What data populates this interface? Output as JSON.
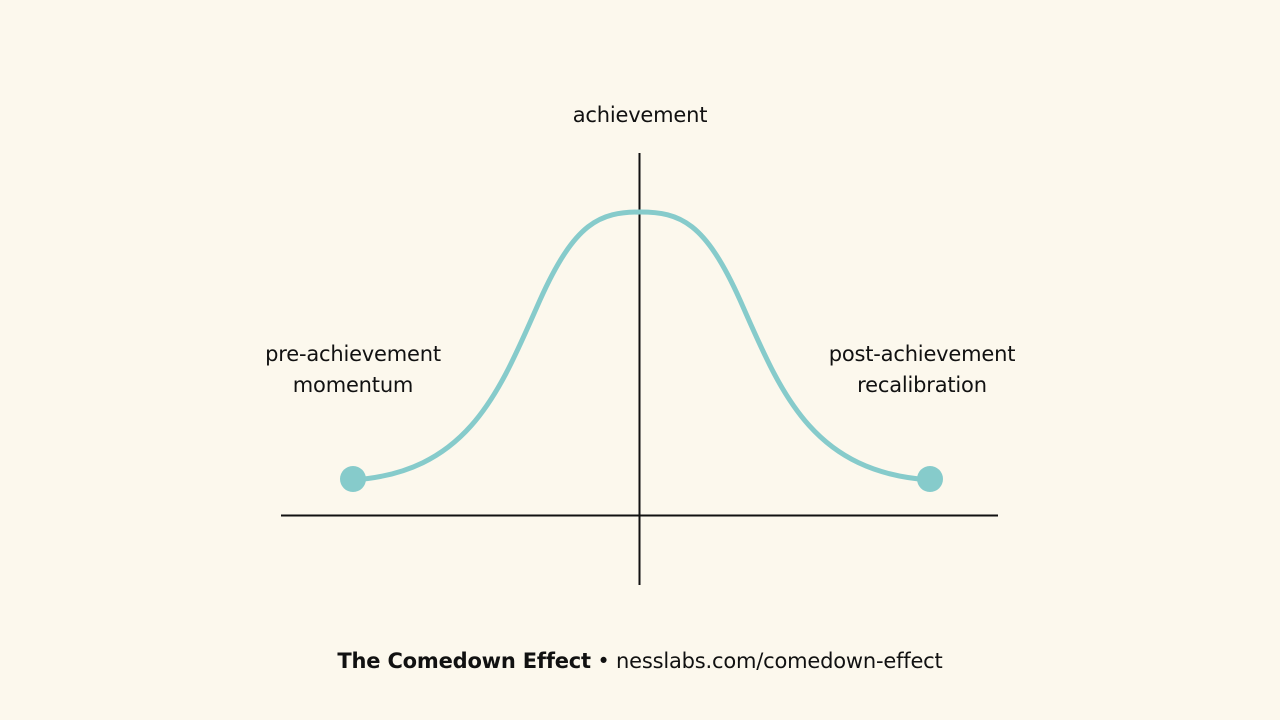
{
  "colors": {
    "background": "#fcf8ed",
    "curve": "#86cbcb",
    "axis": "#111111",
    "text": "#111111"
  },
  "labels": {
    "top": "achievement",
    "left_line1": "pre-achievement",
    "left_line2": "momentum",
    "right_line1": "post-achievement",
    "right_line2": "recalibration"
  },
  "footer": {
    "title": "The Comedown Effect",
    "separator": "•",
    "url": "nesslabs.com/comedown-effect"
  }
}
